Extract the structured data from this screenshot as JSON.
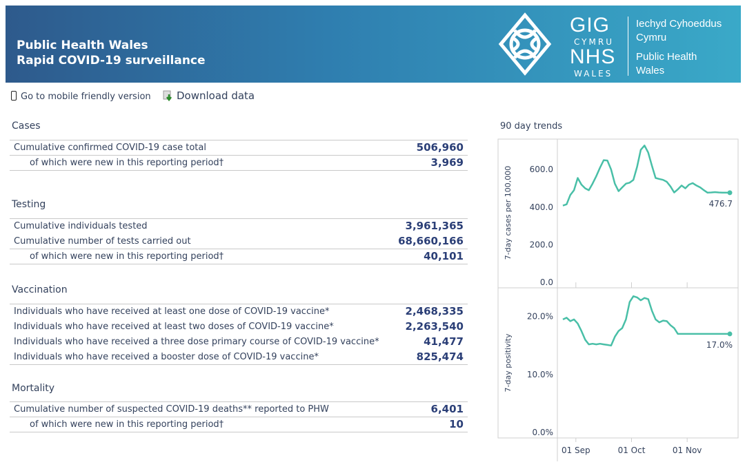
{
  "header": {
    "title_line1": "Public Health Wales",
    "title_line2": "Rapid COVID-19 surveillance",
    "logo": {
      "gig": "GIG",
      "cymru": "CYMRU",
      "nhs": "NHS",
      "wales": "WALES",
      "org_welsh_1": "Iechyd Cyhoeddus",
      "org_welsh_2": "Cymru",
      "org_english_1": "Public Health",
      "org_english_2": "Wales"
    }
  },
  "links": {
    "mobile": "Go to mobile friendly version",
    "download": "Download data"
  },
  "sections": {
    "cases": {
      "title": "Cases",
      "rows": [
        {
          "label": "Cumulative confirmed COVID-19 case total",
          "value": "506,960"
        },
        {
          "label": "of which were new in this reporting period†",
          "value": "3,969"
        }
      ]
    },
    "testing": {
      "title": "Testing",
      "rows": [
        {
          "label": "Cumulative individuals tested",
          "value": "3,961,365"
        },
        {
          "label": "Cumulative number of tests carried out",
          "value": "68,660,166"
        },
        {
          "label": "of which were new in this reporting period†",
          "value": "40,101"
        }
      ]
    },
    "vaccination": {
      "title": "Vaccination",
      "rows": [
        {
          "label": "Individuals who have received at least one dose of COVID-19 vaccine*",
          "value": "2,468,335"
        },
        {
          "label": "Individuals who have received at least two doses of COVID-19 vaccine*",
          "value": "2,263,540"
        },
        {
          "label": "Individuals who have received a three dose primary course of COVID-19 vaccine*",
          "value": "41,477"
        },
        {
          "label": "Individuals who have received a booster dose of COVID-19 vaccine*",
          "value": "825,474"
        }
      ]
    },
    "mortality": {
      "title": "Mortality",
      "rows": [
        {
          "label": "Cumulative number of suspected COVID-19 deaths** reported to PHW",
          "value": "6,401"
        },
        {
          "label": "of which were new in this reporting period†",
          "value": "10"
        }
      ]
    }
  },
  "trends": {
    "title": "90 day trends"
  },
  "colors": {
    "header_start": "#2e5a8c",
    "header_end": "#3aa9c8",
    "line": "#49bfa7",
    "value_text": "#2b3f77"
  },
  "chart_data": [
    {
      "type": "line",
      "title": "",
      "ylabel": "7-day cases per 100,000",
      "ylim": [
        0,
        740
      ],
      "yticks": [
        "0.0",
        "200.0",
        "400.0",
        "600.0"
      ],
      "ytick_values": [
        0,
        200,
        400,
        600
      ],
      "last_label": "476.7",
      "x": [
        0,
        2,
        4,
        6,
        8,
        10,
        12,
        14,
        16,
        18,
        20,
        22,
        24,
        26,
        28,
        30,
        32,
        34,
        36,
        38,
        40,
        42,
        44,
        46,
        48,
        50,
        52,
        54,
        56,
        58,
        60,
        62,
        64,
        66,
        68,
        70,
        72,
        74,
        76,
        78,
        80,
        82,
        84,
        86,
        88,
        90
      ],
      "values": [
        408,
        415,
        465,
        490,
        555,
        520,
        500,
        490,
        525,
        565,
        610,
        650,
        648,
        600,
        525,
        485,
        505,
        525,
        530,
        545,
        615,
        705,
        728,
        690,
        620,
        555,
        550,
        545,
        535,
        510,
        478,
        495,
        515,
        500,
        520,
        528,
        515,
        505,
        490,
        477,
        478,
        480,
        478,
        477,
        477,
        476.7
      ]
    },
    {
      "type": "line",
      "title": "",
      "ylabel": "7-day positivity",
      "ylim": [
        0,
        24
      ],
      "yticks": [
        "0.0%",
        "10.0%",
        "20.0%"
      ],
      "ytick_values": [
        0,
        10,
        20
      ],
      "last_label": "17.0%",
      "x": [
        0,
        2,
        4,
        6,
        8,
        10,
        12,
        14,
        16,
        18,
        20,
        22,
        24,
        26,
        28,
        30,
        32,
        34,
        36,
        38,
        40,
        42,
        44,
        46,
        48,
        50,
        52,
        54,
        56,
        58,
        60,
        62,
        64,
        66,
        68,
        70,
        72,
        74,
        76,
        78,
        80,
        82,
        84,
        86,
        88,
        90
      ],
      "values": [
        19.5,
        19.8,
        19.2,
        19.5,
        18.8,
        17.5,
        16.0,
        15.2,
        15.3,
        15.2,
        15.3,
        15.2,
        15.1,
        15.0,
        16.5,
        17.5,
        18.0,
        19.5,
        22.5,
        23.5,
        23.3,
        22.8,
        23.2,
        23.0,
        21.0,
        19.5,
        19.0,
        19.3,
        19.2,
        18.5,
        18.0,
        17.0,
        17.0,
        17.0,
        17.0,
        17.0,
        17.0,
        17.0,
        17.0,
        17.0,
        17.0,
        17.0,
        17.0,
        17.0,
        17.0,
        17.0
      ]
    }
  ],
  "x_axis": {
    "ticks": [
      "01 Sep",
      "01 Oct",
      "01 Nov"
    ],
    "tick_days": [
      7,
      37,
      67
    ],
    "range_days": [
      0,
      90
    ]
  }
}
